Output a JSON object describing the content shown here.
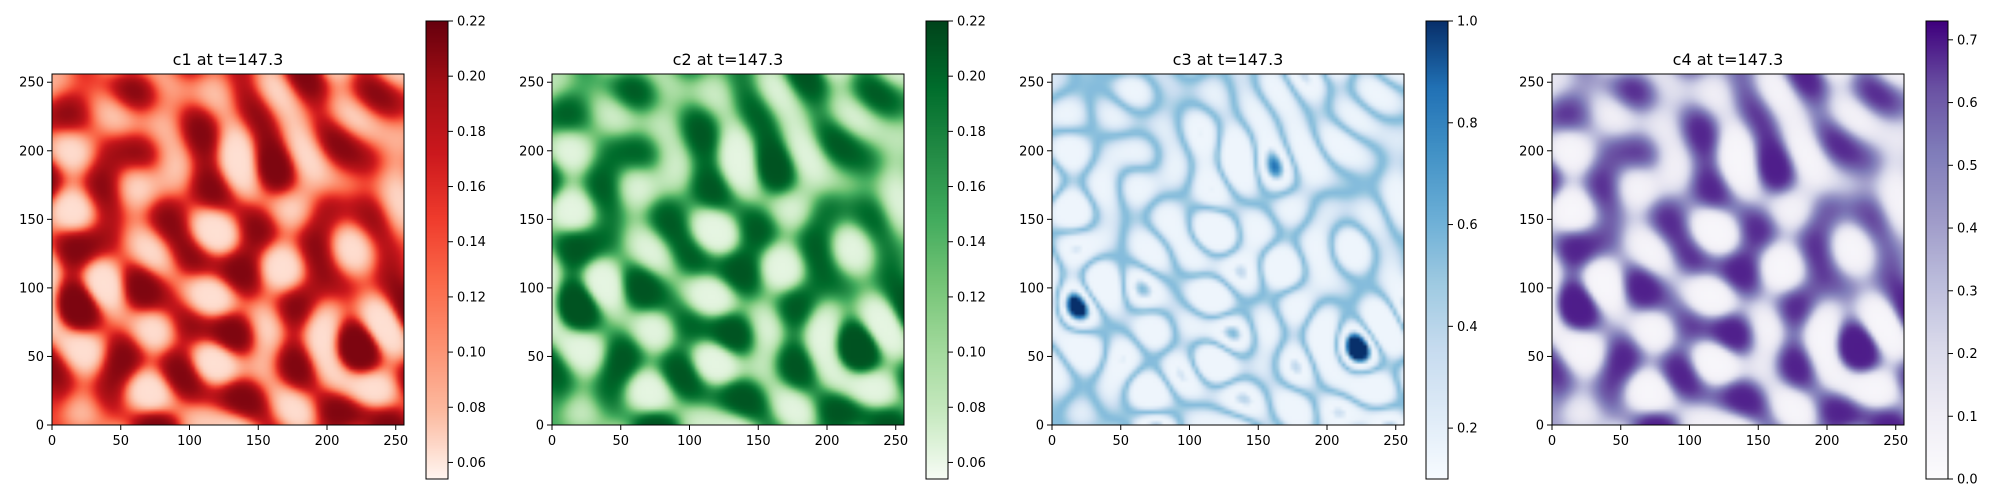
{
  "chart_data": [
    {
      "type": "heatmap",
      "title": "c1 at t=147.3",
      "colormap": "Reds",
      "colors": [
        "#fff5f0",
        "#fcbba1",
        "#fc9272",
        "#fb6a4a",
        "#ef3b2c",
        "#cb181d",
        "#a50f15",
        "#67000d"
      ],
      "xlim": [
        0,
        256
      ],
      "ylim": [
        0,
        256
      ],
      "xticks": [
        0,
        50,
        100,
        150,
        200,
        250
      ],
      "yticks": [
        0,
        50,
        100,
        150,
        200,
        250
      ],
      "field": "high_in_stripes",
      "colorbar": {
        "min": 0.054,
        "max": 0.22,
        "ticks": [
          0.06,
          0.08,
          0.1,
          0.12,
          0.14,
          0.16,
          0.18,
          0.2,
          0.22
        ],
        "tick_labels": [
          "0.06",
          "0.08",
          "0.10",
          "0.12",
          "0.14",
          "0.16",
          "0.18",
          "0.20",
          "0.22"
        ]
      }
    },
    {
      "type": "heatmap",
      "title": "c2 at t=147.3",
      "colormap": "Greens",
      "colors": [
        "#f7fcf5",
        "#c7e9c0",
        "#a1d99b",
        "#74c476",
        "#41ab5d",
        "#238b45",
        "#006d2c",
        "#00441b"
      ],
      "xlim": [
        0,
        256
      ],
      "ylim": [
        0,
        256
      ],
      "xticks": [
        0,
        50,
        100,
        150,
        200,
        250
      ],
      "yticks": [
        0,
        50,
        100,
        150,
        200,
        250
      ],
      "field": "high_in_stripes",
      "colorbar": {
        "min": 0.054,
        "max": 0.22,
        "ticks": [
          0.06,
          0.08,
          0.1,
          0.12,
          0.14,
          0.16,
          0.18,
          0.2,
          0.22
        ],
        "tick_labels": [
          "0.06",
          "0.08",
          "0.10",
          "0.12",
          "0.14",
          "0.16",
          "0.18",
          "0.20",
          "0.22"
        ]
      }
    },
    {
      "type": "heatmap",
      "title": "c3 at t=147.3",
      "colormap": "Blues",
      "colors": [
        "#f7fbff",
        "#deebf7",
        "#c6dbef",
        "#9ecae1",
        "#6baed6",
        "#4292c6",
        "#2171b5",
        "#08306b"
      ],
      "xlim": [
        0,
        256
      ],
      "ylim": [
        0,
        256
      ],
      "xticks": [
        0,
        50,
        100,
        150,
        200,
        250
      ],
      "yticks": [
        0,
        50,
        100,
        150,
        200,
        250
      ],
      "field": "low_with_spots",
      "colorbar": {
        "min": 0.1,
        "max": 1.0,
        "ticks": [
          0.2,
          0.4,
          0.6,
          0.8,
          1.0
        ],
        "tick_labels": [
          "0.2",
          "0.4",
          "0.6",
          "0.8",
          "1.0"
        ]
      }
    },
    {
      "type": "heatmap",
      "title": "c4 at t=147.3",
      "colormap": "Purples",
      "colors": [
        "#fcfbfd",
        "#efedf5",
        "#dadaeb",
        "#bcbddc",
        "#9e9ac8",
        "#807dba",
        "#6a51a3",
        "#3f007d"
      ],
      "xlim": [
        0,
        256
      ],
      "ylim": [
        0,
        256
      ],
      "xticks": [
        0,
        50,
        100,
        150,
        200,
        250
      ],
      "yticks": [
        0,
        50,
        100,
        150,
        200,
        250
      ],
      "field": "high_in_stripes",
      "colorbar": {
        "min": 0.0,
        "max": 0.73,
        "ticks": [
          0.0,
          0.1,
          0.2,
          0.3,
          0.4,
          0.5,
          0.6,
          0.7
        ],
        "tick_labels": [
          "0.0",
          "0.1",
          "0.2",
          "0.3",
          "0.4",
          "0.5",
          "0.6",
          "0.7"
        ]
      }
    }
  ]
}
